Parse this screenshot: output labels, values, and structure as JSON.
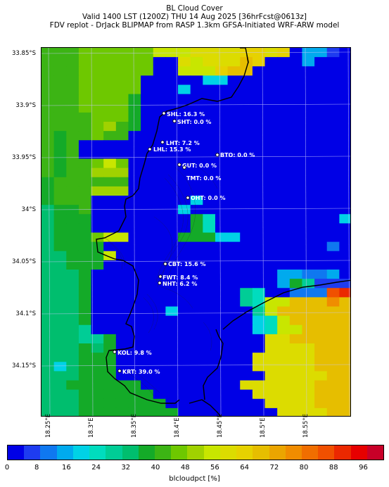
{
  "title": {
    "line1": "BL Cloud Cover",
    "line2": "Valid 1400 LST (1200Z) THU 14 Aug 2025 [36hrFcst@0613z]",
    "line3": "FDV replot - DrJack BLIPMAP from RASP 1.3km GFSA-Initiated WRF-ARW model"
  },
  "axes": {
    "lat_labels": [
      "33.85°S",
      "33.9°S",
      "33.95°S",
      "34°S",
      "34.05°S",
      "34.1°S",
      "34.15°S"
    ],
    "lon_labels": [
      "18.25°E",
      "18.3°E",
      "18.35°E",
      "18.4°E",
      "18.45°E",
      "18.5°E",
      "18.55°E"
    ]
  },
  "colorbar": {
    "label": "blcloudpct [%]",
    "ticks": [
      "0",
      "8",
      "16",
      "24",
      "32",
      "40",
      "48",
      "56",
      "64",
      "72",
      "80",
      "88",
      "96"
    ],
    "colors": [
      "#0000e6",
      "#1e3cf0",
      "#0f78f0",
      "#00aaee",
      "#00d2e6",
      "#00dcbe",
      "#00cd96",
      "#00be6e",
      "#14aa28",
      "#3cb414",
      "#6ec800",
      "#a0d200",
      "#c8e600",
      "#dcdc00",
      "#e6d200",
      "#e6be00",
      "#eba500",
      "#f08c00",
      "#f06e00",
      "#f05000",
      "#eb2800",
      "#e60000",
      "#c80028"
    ]
  },
  "sites": [
    {
      "code": "SHL",
      "text": "SHL: 16.3 %"
    },
    {
      "code": "SHT",
      "text": "SHT: 0.0 %"
    },
    {
      "code": "LHT",
      "text": "LHT: 7.2 %"
    },
    {
      "code": "LHL",
      "text": "LHL: 15.3 %"
    },
    {
      "code": "BTO",
      "text": "BTO: 0.0 %"
    },
    {
      "code": "GUT",
      "text": "GUT: 0.0 %"
    },
    {
      "code": "TMT",
      "text": "TMT: 0.0 %"
    },
    {
      "code": "OHT",
      "text": "OHT: 0.0 %"
    },
    {
      "code": "CBT",
      "text": "CBT: 15.6 %"
    },
    {
      "code": "FWT",
      "text": "FWT: 8.4 %"
    },
    {
      "code": "NHT",
      "text": "NHT: 6.2 %"
    },
    {
      "code": "KOL",
      "text": "KOL: 9.8 %"
    },
    {
      "code": "KRT",
      "text": "KRT: 39.0 %"
    }
  ],
  "legend_colors": {
    "blue": "#0000e6",
    "green_dark": "#14aa28",
    "green_mid": "#00be6e",
    "yellow_green": "#a0d200",
    "yellow": "#e6d200",
    "orange": "#f05000"
  }
}
